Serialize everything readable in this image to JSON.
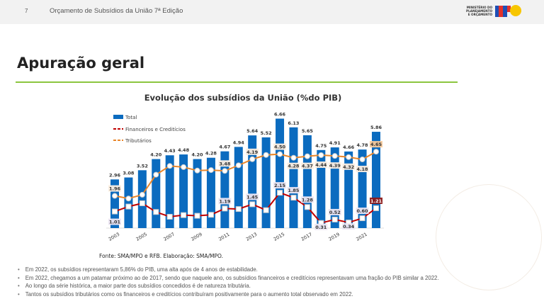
{
  "header": {
    "page_number": "7",
    "document_title": "Orçamento de Subsídios da União 7ª Edição",
    "logo_text": "MINISTÉRIO DO\nPLANEJAMENTO\nE ORÇAMENTO",
    "logo_letters": "MPO"
  },
  "heading": "Apuração geral",
  "source": "Fonte: SMA/MPO e RFB. Elaboração: SMA/MPO.",
  "bullets": [
    "Em 2022, os subsídios representaram 5,86% do PIB, uma alta após de 4 anos de estabilidade.",
    "Em 2022, chegamos a um patamar próximo ao de 2017, sendo que naquele ano, os subsídios financeiros e creditícios representavam uma fração do PIB similar a 2022.",
    "Ao longo da série histórica, a maior parte dos subsídios concedidos é de natureza tributária.",
    "Tantos os subsídios tributários como os financeiros e creditícios contribuíram positivamente para o aumento total observado em 2022."
  ],
  "chart_data": {
    "type": "bar+line",
    "title": "Evolução dos subsídios da União (%do PIB)",
    "x": [
      2003,
      2004,
      2005,
      2006,
      2007,
      2008,
      2009,
      2010,
      2011,
      2012,
      2013,
      2014,
      2015,
      2016,
      2017,
      2018,
      2019,
      2020,
      2021,
      2022
    ],
    "tick_labels": [
      "2003",
      "2005",
      "2007",
      "2009",
      "2011",
      "2013",
      "2015",
      "2017",
      "2019",
      "2021"
    ],
    "legend_position": "top-left",
    "series": [
      {
        "name": "Total",
        "kind": "bar",
        "color": "#0b6bbf",
        "values": [
          2.96,
          3.08,
          3.52,
          4.2,
          4.43,
          4.48,
          4.2,
          4.28,
          4.67,
          4.94,
          5.64,
          5.52,
          6.66,
          6.13,
          5.65,
          4.75,
          4.91,
          4.66,
          4.78,
          5.86
        ],
        "labels": [
          "2.96",
          "3.08",
          "3.52",
          "4.20",
          "4.43",
          "4.48",
          "4.20",
          "4.28",
          "4.67",
          "4.94",
          "5.64",
          "5.52",
          "6.66",
          "6.13",
          "5.65",
          "4.75",
          "4.91",
          "4.66",
          "4.78",
          "5.86"
        ]
      },
      {
        "name": "Financeiros e Creditícios",
        "kind": "line",
        "color": "#c00000",
        "values": [
          1.01,
          1.31,
          1.51,
          0.98,
          0.69,
          0.79,
          0.75,
          0.81,
          1.19,
          1.16,
          1.45,
          1.09,
          2.15,
          1.85,
          1.28,
          0.31,
          0.52,
          0.34,
          0.6,
          1.21
        ],
        "labels": [
          "1.01",
          "",
          "",
          "",
          "",
          "",
          "",
          "",
          "1.19",
          "",
          "1.45",
          "",
          "2.15",
          "1.85",
          "1.28",
          "0.31",
          "0.52",
          "0.34",
          "0.60",
          "1.21"
        ]
      },
      {
        "name": "Tributários",
        "kind": "line",
        "color": "#e9862a",
        "values": [
          1.96,
          1.8,
          2.03,
          3.25,
          3.78,
          3.71,
          3.5,
          3.53,
          3.48,
          3.82,
          4.19,
          4.45,
          4.5,
          4.28,
          4.37,
          4.44,
          4.39,
          4.32,
          4.18,
          4.65
        ],
        "labels": [
          "1.96",
          "",
          "",
          "",
          "",
          "",
          "",
          "",
          "3.48",
          "",
          "4.19",
          "",
          "4.50",
          "4.28",
          "4.37",
          "4.44",
          "4.39",
          "4.32",
          "4.18",
          "4.65"
        ]
      }
    ]
  }
}
